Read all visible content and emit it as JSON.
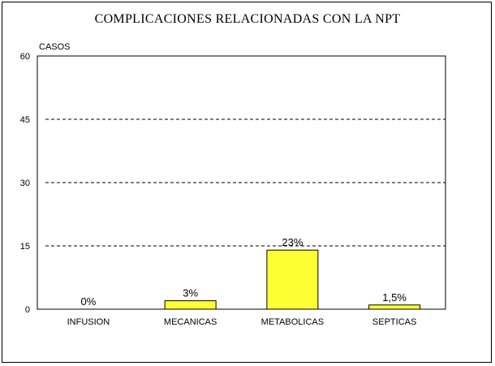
{
  "chart_data": {
    "type": "bar",
    "title": "COMPLICACIONES RELACIONADAS CON LA NPT",
    "ylabel": "CASOS",
    "xlabel": "",
    "ylim": [
      0,
      60
    ],
    "yticks": [
      0,
      15,
      30,
      45,
      60
    ],
    "grid": "dashed horizontal at 15, 30, 45",
    "categories": [
      "INFUSION",
      "MECANICAS",
      "METABOLICAS",
      "SEPTICAS"
    ],
    "values": [
      0,
      2,
      14,
      1
    ],
    "data_labels": [
      "0%",
      "3%",
      "23%",
      "1,5%"
    ],
    "bar_color": "#ffff33",
    "bar_stroke": "#000000"
  }
}
